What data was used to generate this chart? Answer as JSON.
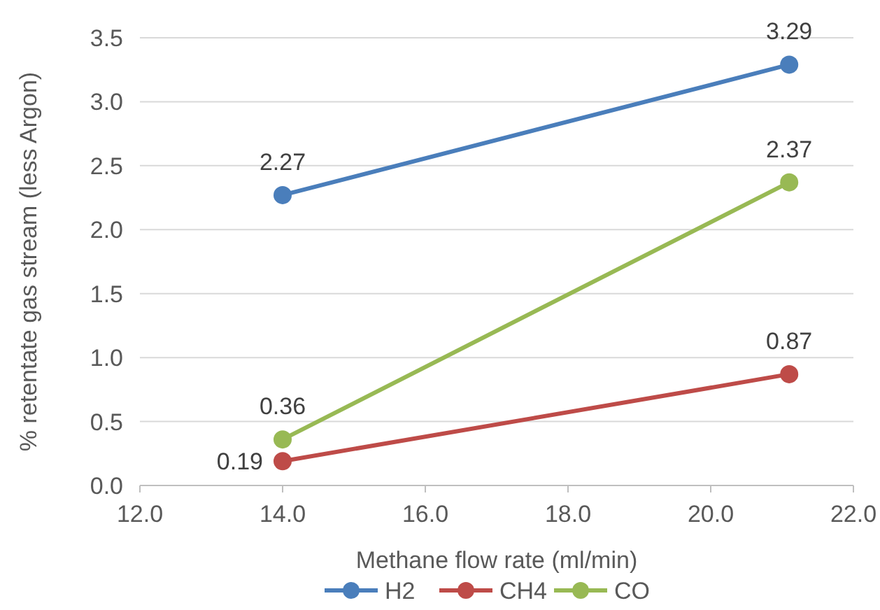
{
  "chart_data": {
    "type": "line",
    "xlabel": "Methane flow rate (ml/min)",
    "ylabel": "% retentate gas stream (less Argon)",
    "x": [
      14.0,
      21.1
    ],
    "series": [
      {
        "name": "H2",
        "color": "#4a7ebb",
        "values": [
          2.27,
          3.29
        ]
      },
      {
        "name": "CH4",
        "color": "#be4b48",
        "values": [
          0.19,
          0.87
        ]
      },
      {
        "name": "CO",
        "color": "#98b954",
        "values": [
          0.36,
          2.37
        ]
      }
    ],
    "xlim": [
      12,
      22
    ],
    "xticks": [
      {
        "value": 12,
        "label": "12.0"
      },
      {
        "value": 14,
        "label": "14.0"
      },
      {
        "value": 16,
        "label": "16.0"
      },
      {
        "value": 18,
        "label": "18.0"
      },
      {
        "value": 20,
        "label": "20.0"
      },
      {
        "value": 22,
        "label": "22.0"
      }
    ],
    "ylim": [
      0,
      3.5
    ],
    "yticks": [
      {
        "value": 0,
        "label": "0.0"
      },
      {
        "value": 0.5,
        "label": "0.5"
      },
      {
        "value": 1,
        "label": "1.0"
      },
      {
        "value": 1.5,
        "label": "1.5"
      },
      {
        "value": 2,
        "label": "2.0"
      },
      {
        "value": 2.5,
        "label": "2.5"
      },
      {
        "value": 3,
        "label": "3.0"
      },
      {
        "value": 3.5,
        "label": "3.5"
      }
    ],
    "grid": "y",
    "legend": "bottom",
    "marker": "circle",
    "line_style": "solid",
    "data_labels": true
  }
}
